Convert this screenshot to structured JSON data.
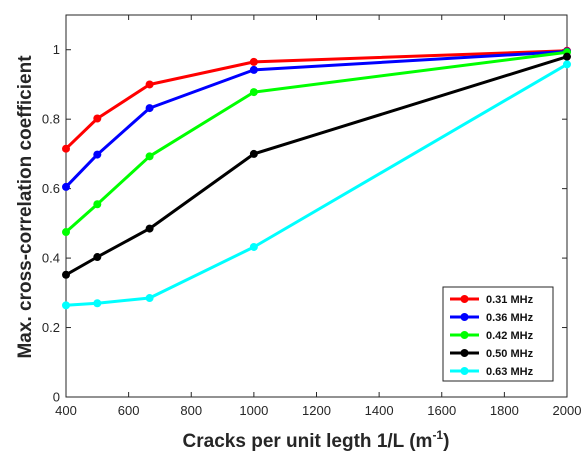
{
  "chart_data": {
    "type": "line",
    "title": "",
    "xlabel": "Cracks per unit legth 1/L (m",
    "xlabel_sup": "-1",
    "xlabel_close": ")",
    "ylabel": "Max. cross-correlation coefficient",
    "xlim": [
      400,
      2000
    ],
    "ylim": [
      0,
      1.1
    ],
    "xticks": [
      400,
      600,
      800,
      1000,
      1200,
      1400,
      1600,
      1800,
      2000
    ],
    "yticks": [
      0,
      0.2,
      0.4,
      0.6,
      0.8,
      1
    ],
    "ytick_labels": [
      "0",
      "0.2",
      "0.4",
      "0.6",
      "0.8",
      "1"
    ],
    "grid": false,
    "legend_position": "bottom-right",
    "x": [
      400,
      500,
      667,
      1000,
      2000
    ],
    "series": [
      {
        "name": "0.31 MHz",
        "color": "#ff0000",
        "values": [
          0.715,
          0.802,
          0.9,
          0.965,
          0.997
        ]
      },
      {
        "name": "0.36 MHz",
        "color": "#0000ff",
        "values": [
          0.605,
          0.698,
          0.832,
          0.942,
          0.995
        ]
      },
      {
        "name": "0.42 MHz",
        "color": "#00ff00",
        "values": [
          0.475,
          0.555,
          0.693,
          0.878,
          0.993
        ]
      },
      {
        "name": "0.50 MHz",
        "color": "#000000",
        "values": [
          0.352,
          0.403,
          0.485,
          0.7,
          0.98
        ]
      },
      {
        "name": "0.63 MHz",
        "color": "#00ffff",
        "values": [
          0.264,
          0.27,
          0.285,
          0.432,
          0.958
        ]
      }
    ]
  }
}
